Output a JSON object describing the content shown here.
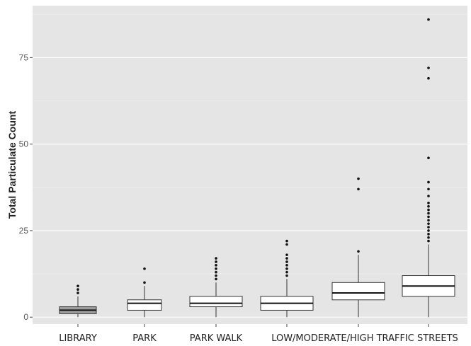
{
  "chart_data": {
    "type": "boxplot",
    "title": "",
    "xlabel": "",
    "ylabel": "Total Particulate Count",
    "ylim": [
      -2,
      90
    ],
    "yticks": [
      0,
      25,
      50,
      75
    ],
    "grid": true,
    "background": "#e5e5e5",
    "grid_major_color": "#ffffff",
    "categories": [
      "LIBRARY",
      "PARK",
      "PARK WALK",
      "LOW/MODERATE/HIGH TRAFFIC STREETS"
    ],
    "boxes": [
      {
        "category": "LIBRARY",
        "min": 0,
        "q1": 1,
        "median": 2,
        "q3": 3,
        "max": 6,
        "outliers": [
          7,
          8,
          9
        ],
        "fill": "#9e9e9e"
      },
      {
        "category": "PARK",
        "min": 0,
        "q1": 2,
        "median": 4,
        "q3": 5,
        "max": 9,
        "outliers": [
          10,
          14
        ],
        "fill": "#ffffff"
      },
      {
        "category": "PARK WALK",
        "min": 0,
        "q1": 3,
        "median": 4,
        "q3": 6,
        "max": 10,
        "outliers": [
          11,
          12,
          13,
          14,
          15,
          16,
          17
        ],
        "fill": "#ffffff"
      },
      {
        "category": "LOW",
        "min": 0,
        "q1": 2,
        "median": 4,
        "q3": 6,
        "max": 11,
        "outliers": [
          12,
          13,
          14,
          15,
          16,
          17,
          18,
          21,
          22
        ],
        "fill": "#ffffff"
      },
      {
        "category": "MODERATE",
        "min": 0,
        "q1": 5,
        "median": 7,
        "q3": 10,
        "max": 18,
        "outliers": [
          19,
          37,
          40
        ],
        "fill": "#ffffff"
      },
      {
        "category": "HIGH TRAFFIC STREETS",
        "min": 0,
        "q1": 6,
        "median": 9,
        "q3": 12,
        "max": 21,
        "outliers": [
          22,
          23,
          24,
          25,
          26,
          27,
          28,
          29,
          30,
          31,
          32,
          33,
          35,
          37,
          39,
          46,
          69,
          72,
          86
        ],
        "fill": "#ffffff"
      }
    ]
  }
}
